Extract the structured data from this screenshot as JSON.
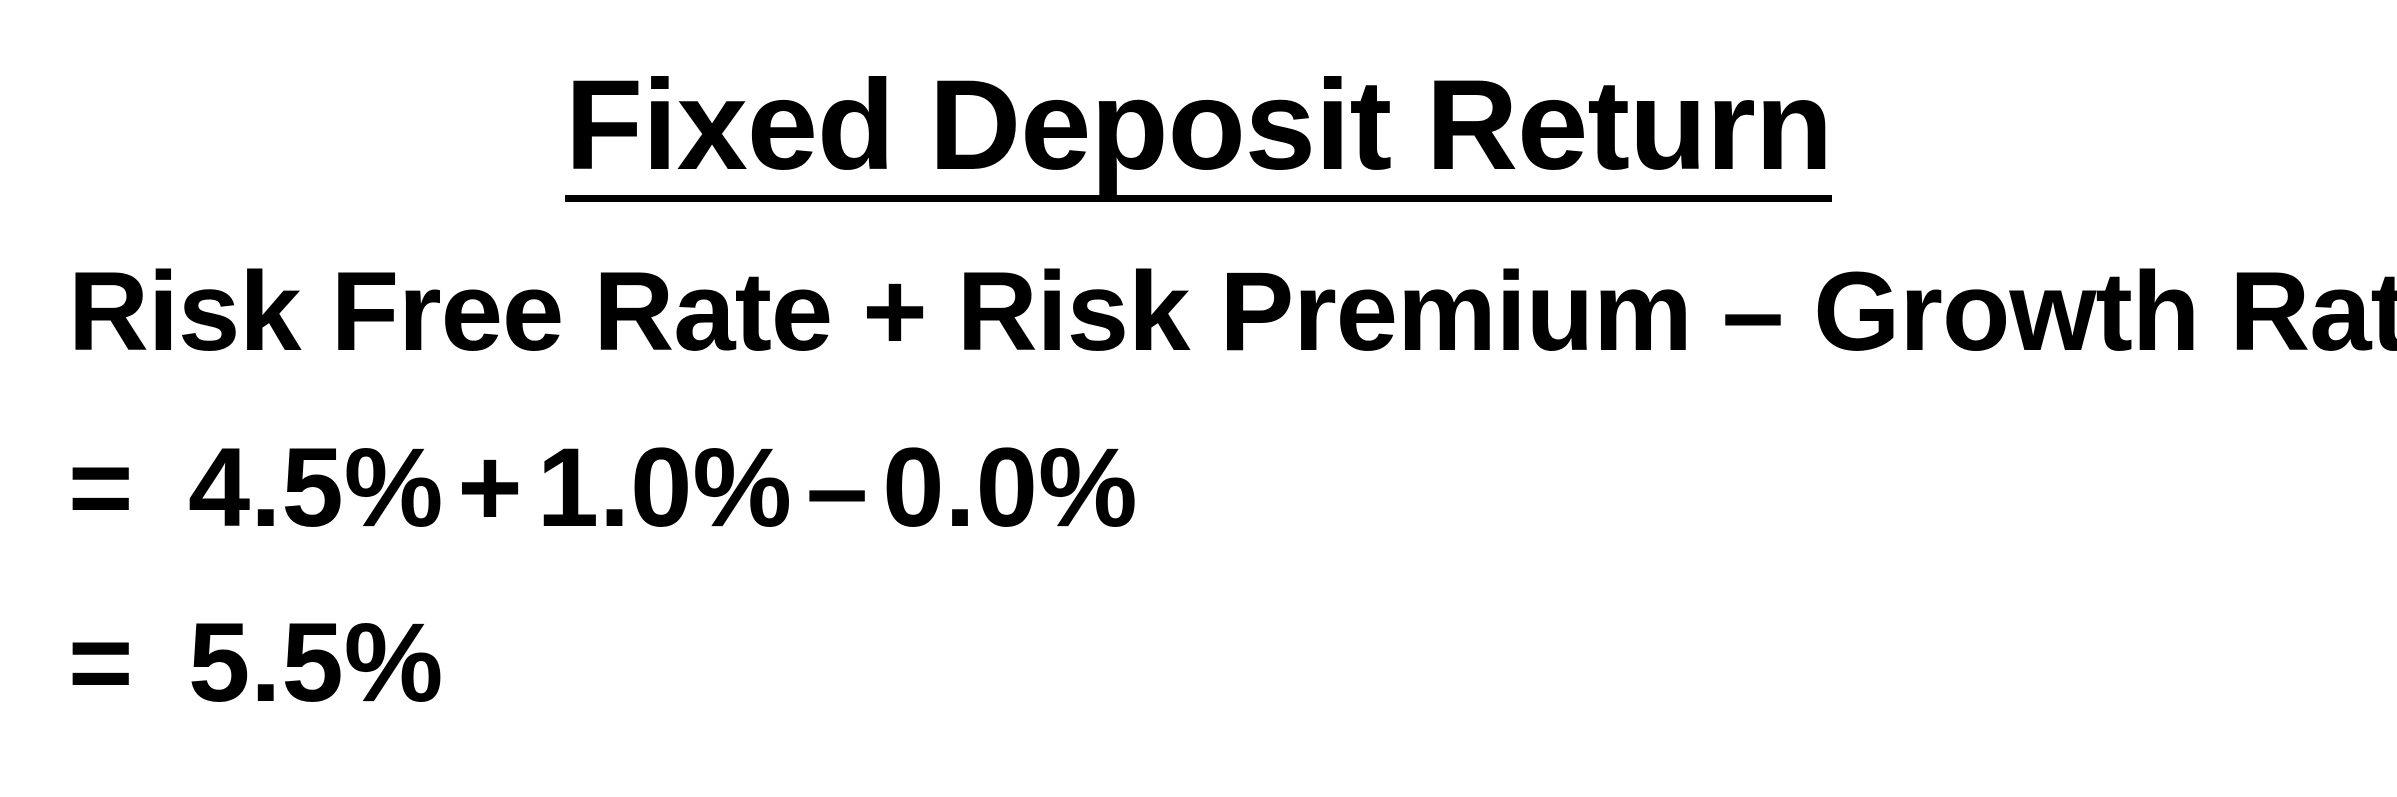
{
  "title": "Fixed Deposit Return",
  "formula": "Risk Free Rate + Risk Premium – Growth Rate",
  "calculation": {
    "equals_sign": "=",
    "risk_free_rate": "4.5%",
    "plus": "+",
    "risk_premium": "1.0%",
    "minus": "–",
    "growth_rate": "0.0%"
  },
  "result": {
    "equals_sign": "=",
    "value": "5.5%"
  }
}
